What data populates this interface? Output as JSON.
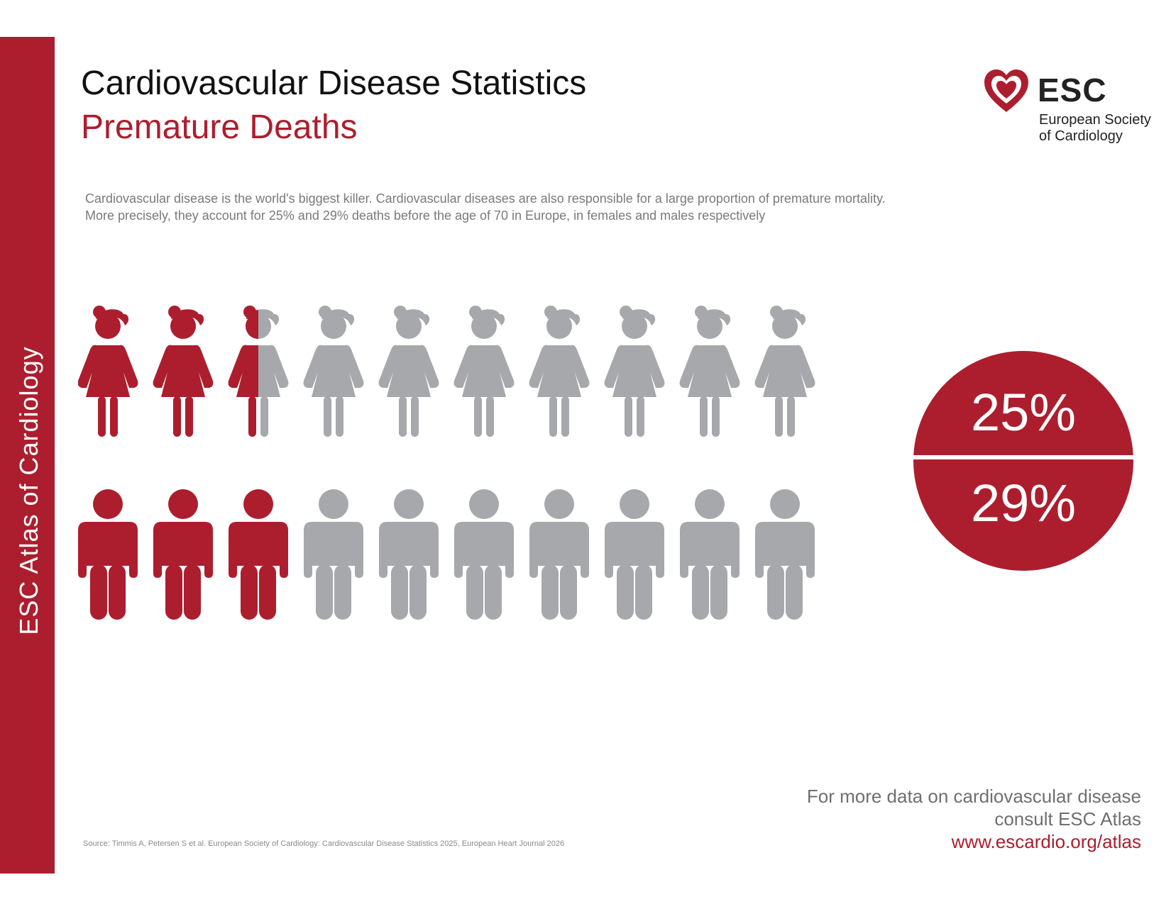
{
  "sidebar": {
    "label": "ESC Atlas of Cardiology"
  },
  "header": {
    "title": "Cardiovascular Disease Statistics",
    "subtitle": "Premature Deaths"
  },
  "intro": "Cardiovascular disease is the world's biggest killer. Cardiovascular diseases are also responsible for a large proportion of premature mortality. More precisely, they account for 25% and 29% deaths before the age of 70 in Europe, in females and males respectively",
  "logo": {
    "abbreviation": "ESC",
    "name_line1": "European Society",
    "name_line2": "of Cardiology",
    "icon": "heart-icon"
  },
  "pictogram": {
    "total_figures": 10,
    "female_highlighted": 2.5,
    "male_highlighted": 3,
    "highlight_color": "#ac1e2e",
    "base_color": "#a7a8ab"
  },
  "badge": {
    "female_value": "25%",
    "male_value": "29%",
    "color": "#ac1e2e"
  },
  "footer": {
    "line1": "For more data on cardiovascular disease",
    "line2": "consult ESC Atlas",
    "link": "www.escardio.org/atlas"
  },
  "source": "Source: Timmis A, Petersen S et al. European Society of Cardiology: Cardiovascular Disease Statistics 2025, European Heart Journal 2026"
}
